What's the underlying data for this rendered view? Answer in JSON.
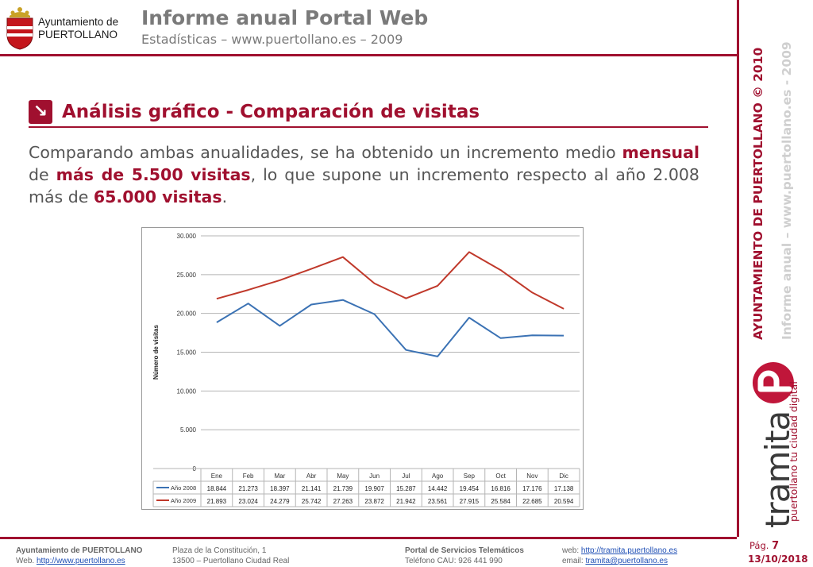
{
  "header": {
    "logo_line1": "Ayuntamiento de",
    "logo_line2": "PUERTOLLANO",
    "title": "Informe anual Portal Web",
    "subtitle": "Estadísticas – www.puertollano.es – 2009"
  },
  "side": {
    "vertical_main": "AYUNTAMIENTO DE PUERTOLLANO © 2010",
    "vertical_sub": "Informe anual – www.puertollano.es - 2009",
    "brand_word": "tramita",
    "brand_tagline": "puertollano tu ciudad digital"
  },
  "section": {
    "title": "Análisis gráfico - Comparación de visitas"
  },
  "paragraph": {
    "t1": "Comparando ambas anualidades, se ha obtenido un incremento medio ",
    "b1": "mensual",
    "t2": " de ",
    "b2": "más de 5.500 visitas",
    "t3": ", lo que supone un incremento respecto al año 2.008 más de ",
    "b3": "65.000 visitas",
    "t4": "."
  },
  "chart_data": {
    "type": "line",
    "ylabel": "Número de visitas",
    "ylim": [
      0,
      30000
    ],
    "yticks": [
      0,
      5000,
      10000,
      15000,
      20000,
      25000,
      30000
    ],
    "ytick_labels": [
      "0",
      "5.000",
      "10.000",
      "15.000",
      "20.000",
      "25.000",
      "30.000"
    ],
    "grid": true,
    "categories": [
      "Ene",
      "Feb",
      "Mar",
      "Abr",
      "May",
      "Jun",
      "Jul",
      "Ago",
      "Sep",
      "Oct",
      "Nov",
      "Dic"
    ],
    "series": [
      {
        "name": "Año 2008",
        "color": "#3b72b4",
        "values": [
          18844,
          21273,
          18397,
          21141,
          21739,
          19907,
          15287,
          14442,
          19454,
          16816,
          17176,
          17138
        ],
        "labels": [
          "18.844",
          "21.273",
          "18.397",
          "21.141",
          "21.739",
          "19.907",
          "15.287",
          "14.442",
          "19.454",
          "16.816",
          "17.176",
          "17.138"
        ]
      },
      {
        "name": "Año 2009",
        "color": "#c0392b",
        "values": [
          21893,
          23024,
          24279,
          25742,
          27263,
          23872,
          21942,
          23561,
          27915,
          25584,
          22685,
          20594
        ],
        "labels": [
          "21.893",
          "23.024",
          "24.279",
          "25.742",
          "27.263",
          "23.872",
          "21.942",
          "23.561",
          "27.915",
          "25.584",
          "22.685",
          "20.594"
        ]
      }
    ],
    "legend": "data-table-below"
  },
  "footer": {
    "c1_l1": "Ayuntamiento de PUERTOLLANO",
    "c1_l2_label": "Web. ",
    "c1_l2_link": "http://www.puertollano.es",
    "c2_l1": "Plaza de la Constitución, 1",
    "c2_l2": "13500 – Puertollano Ciudad Real",
    "c3_l1": "Portal de Servicios Telemáticos",
    "c3_l2": "Teléfono CAU: 926 441 990",
    "c4_l1_label": "web: ",
    "c4_l1_link": "http://tramita.puertollano.es",
    "c4_l2_label": "email: ",
    "c4_l2_link": "tramita@puertollano.es",
    "page_label": "Pág. ",
    "page_num": "7",
    "date": "13/10/2018"
  }
}
